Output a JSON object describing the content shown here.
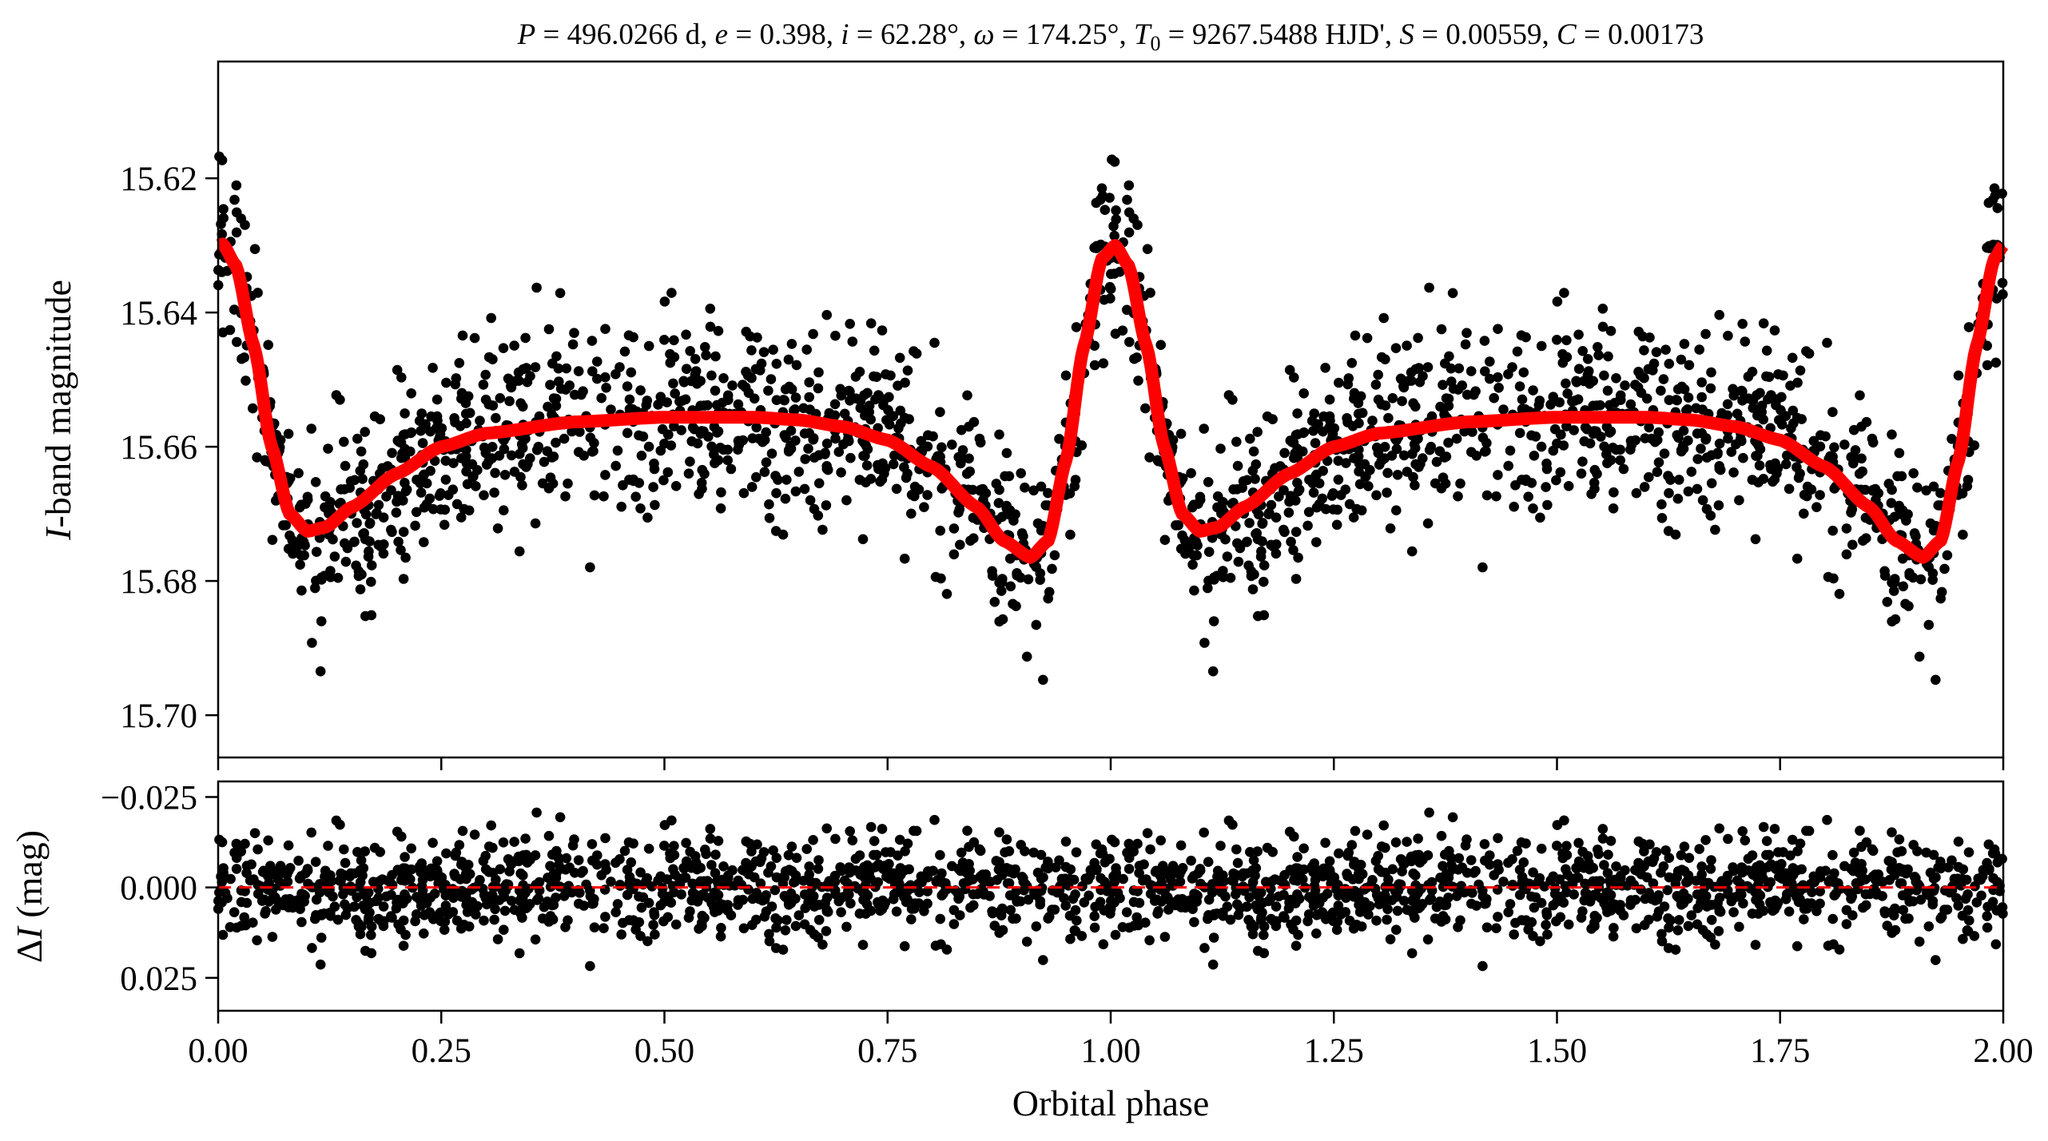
{
  "chart_data": [
    {
      "type": "scatter",
      "panel": "light-curve",
      "title_segments": [
        {
          "text": "P",
          "italic": true
        },
        {
          "text": " = 496.0266 d, "
        },
        {
          "text": "e",
          "italic": true
        },
        {
          "text": " = 0.398, "
        },
        {
          "text": "i",
          "italic": true
        },
        {
          "text": " = 62.28°, "
        },
        {
          "text": "ω",
          "italic": true
        },
        {
          "text": " = 174.25°, "
        },
        {
          "text": "T",
          "italic": true
        },
        {
          "text": "0",
          "sub": true
        },
        {
          "text": " = 9267.5488 HJD', "
        },
        {
          "text": "S",
          "italic": true
        },
        {
          "text": " = 0.00559, "
        },
        {
          "text": "C",
          "italic": true
        },
        {
          "text": " = 0.00173"
        }
      ],
      "ylabel_italic": "I",
      "ylabel": "-band magnitude",
      "xlim": [
        0,
        2
      ],
      "ylim": [
        15.7063,
        15.6026
      ],
      "y_inverted": true,
      "yticks": [
        "15.62",
        "15.64",
        "15.66",
        "15.68",
        "15.70"
      ],
      "xticks": [
        0,
        0.25,
        0.5,
        0.75,
        1,
        1.25,
        1.5,
        1.75,
        2
      ],
      "grid": false,
      "colors": {
        "points": "#000000",
        "model": "#ff0000"
      },
      "model_curve": {
        "phase": [
          0.0,
          0.005,
          0.02,
          0.04,
          0.06,
          0.08,
          0.1,
          0.12,
          0.15,
          0.2,
          0.25,
          0.3,
          0.4,
          0.5,
          0.6,
          0.65,
          0.7,
          0.75,
          0.8,
          0.85,
          0.88,
          0.91,
          0.93,
          0.95,
          0.97,
          0.99,
          1.005,
          1.02,
          1.04,
          1.06,
          1.08,
          1.1,
          1.12,
          1.15,
          1.2,
          1.25,
          1.3,
          1.4,
          1.5,
          1.6,
          1.65,
          1.7,
          1.75,
          1.8,
          1.85,
          1.88,
          1.91,
          1.93,
          1.95,
          1.97,
          1.99,
          2.0
        ],
        "mag": [
          15.63,
          15.6298,
          15.633,
          15.645,
          15.66,
          15.67,
          15.6726,
          15.672,
          15.669,
          15.664,
          15.66,
          15.658,
          15.6563,
          15.6556,
          15.6556,
          15.656,
          15.657,
          15.659,
          15.663,
          15.669,
          15.674,
          15.6765,
          15.674,
          15.662,
          15.645,
          15.632,
          15.63,
          15.633,
          15.645,
          15.66,
          15.67,
          15.6726,
          15.672,
          15.669,
          15.664,
          15.66,
          15.658,
          15.6563,
          15.6556,
          15.6556,
          15.656,
          15.657,
          15.659,
          15.663,
          15.669,
          15.674,
          15.6765,
          15.674,
          15.662,
          15.645,
          15.632,
          15.63
        ]
      }
    },
    {
      "type": "scatter",
      "panel": "residuals",
      "ylabel_prefix": "Δ",
      "ylabel_italic": "I",
      "ylabel": " (mag)",
      "xlabel": "Orbital phase",
      "xlim": [
        0,
        2
      ],
      "ylim": [
        0.0341,
        -0.0293
      ],
      "y_inverted": true,
      "yticks": [
        "−0.025",
        "0.000",
        "0.025"
      ],
      "ytick_values": [
        -0.025,
        0,
        0.025
      ],
      "xticks": [
        "0.00",
        "0.25",
        "0.50",
        "0.75",
        "1.00",
        "1.25",
        "1.50",
        "1.75",
        "2.00"
      ],
      "zero_line": {
        "value": 0,
        "style": "dashed",
        "color": "#ff0000"
      },
      "grid": false
    }
  ]
}
